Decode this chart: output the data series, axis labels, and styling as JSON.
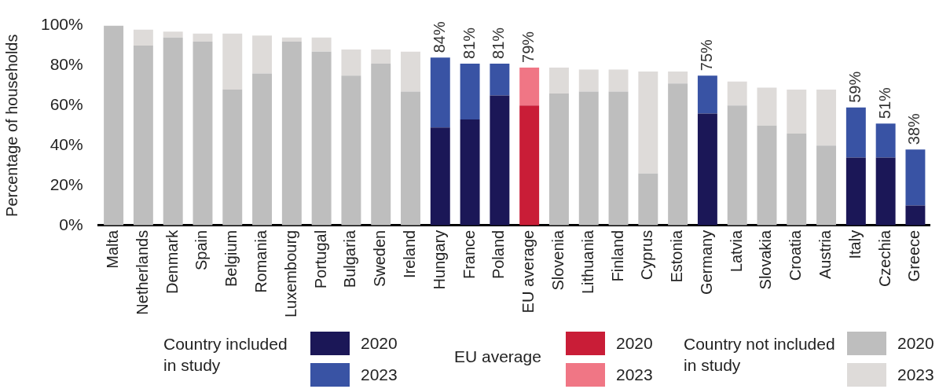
{
  "chart_data": {
    "type": "bar",
    "stacked": true,
    "ylabel": "Percentage of households",
    "categories": [
      "Malta",
      "Netherlands",
      "Denmark",
      "Spain",
      "Belgium",
      "Romania",
      "Luxembourg",
      "Portugal",
      "Bulgaria",
      "Sweden",
      "Ireland",
      "Hungary",
      "France",
      "Poland",
      "EU average",
      "Slovenia",
      "Lithuania",
      "Finland",
      "Cyprus",
      "Estonia",
      "Germany",
      "Latvia",
      "Slovakia",
      "Croatia",
      "Austria",
      "Italy",
      "Czechia",
      "Greece"
    ],
    "series": [
      {
        "name": "2020",
        "color": "#1b1757",
        "values": [
          null,
          null,
          null,
          null,
          null,
          null,
          null,
          null,
          null,
          null,
          null,
          49,
          53,
          65,
          null,
          null,
          null,
          null,
          null,
          null,
          56,
          null,
          null,
          null,
          null,
          34,
          34,
          10
        ]
      },
      {
        "name": "2023",
        "color": "#3953a4",
        "values": [
          null,
          null,
          null,
          null,
          null,
          null,
          null,
          null,
          null,
          null,
          null,
          35,
          28,
          16,
          null,
          null,
          null,
          null,
          null,
          null,
          19,
          null,
          null,
          null,
          null,
          25,
          17,
          28
        ]
      },
      {
        "name": "2020",
        "color": "#c91d37",
        "values": [
          null,
          null,
          null,
          null,
          null,
          null,
          null,
          null,
          null,
          null,
          null,
          null,
          null,
          null,
          60,
          null,
          null,
          null,
          null,
          null,
          null,
          null,
          null,
          null,
          null,
          null,
          null,
          null
        ]
      },
      {
        "name": "2023",
        "color": "#f07685",
        "values": [
          null,
          null,
          null,
          null,
          null,
          null,
          null,
          null,
          null,
          null,
          null,
          null,
          null,
          null,
          19,
          null,
          null,
          null,
          null,
          null,
          null,
          null,
          null,
          null,
          null,
          null,
          null,
          null
        ]
      },
      {
        "name": "2020",
        "color": "#bebebe",
        "values": [
          100,
          90,
          94,
          92,
          68,
          76,
          92,
          87,
          75,
          81,
          67,
          null,
          null,
          null,
          null,
          66,
          67,
          67,
          26,
          71,
          null,
          60,
          50,
          46,
          40,
          null,
          null,
          null
        ]
      },
      {
        "name": "2023",
        "color": "#dedbd9",
        "values": [
          0,
          8,
          3,
          4,
          28,
          19,
          2,
          7,
          13,
          7,
          20,
          null,
          null,
          null,
          null,
          13,
          11,
          11,
          51,
          6,
          null,
          12,
          19,
          22,
          28,
          null,
          null,
          null
        ]
      }
    ],
    "totals": [
      null,
      null,
      null,
      null,
      null,
      null,
      null,
      null,
      null,
      null,
      null,
      "84%",
      "81%",
      "81%",
      "79%",
      null,
      null,
      null,
      null,
      null,
      "75%",
      null,
      null,
      null,
      null,
      "59%",
      "51%",
      "38%"
    ],
    "ylim": [
      0,
      100
    ],
    "yticks": [
      {
        "value": 0,
        "label": "0%"
      },
      {
        "value": 20,
        "label": "20%"
      },
      {
        "value": 40,
        "label": "40%"
      },
      {
        "value": 60,
        "label": "60%"
      },
      {
        "value": 80,
        "label": "80%"
      },
      {
        "value": 100,
        "label": "100%"
      }
    ],
    "grid": false,
    "legend": "bottom",
    "annotations": [
      "Country included in study",
      "EU average",
      "Country not included in study"
    ]
  }
}
